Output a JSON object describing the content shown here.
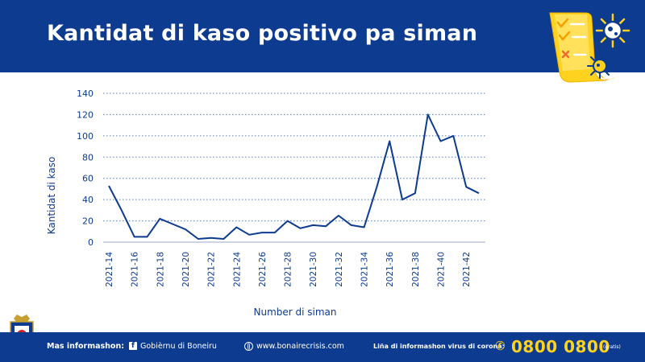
{
  "header": {
    "title": "Kantidat di kaso positivo pa siman"
  },
  "chart_data": {
    "type": "line",
    "title": "",
    "xlabel": "Number di siman",
    "ylabel": "Kantidat di kaso",
    "ylim": [
      0,
      140
    ],
    "yticks": [
      0,
      20,
      40,
      60,
      80,
      100,
      120,
      140
    ],
    "grid": "horizontal-dotted",
    "line_color": "#0d3b8f",
    "x": [
      "2021-14",
      "2021-15",
      "2021-16",
      "2021-17",
      "2021-18",
      "2021-19",
      "2021-20",
      "2021-21",
      "2021-22",
      "2021-23",
      "2021-24",
      "2021-25",
      "2021-26",
      "2021-27",
      "2021-28",
      "2021-29",
      "2021-30",
      "2021-31",
      "2021-32",
      "2021-33",
      "2021-34",
      "2021-35",
      "2021-36",
      "2021-37",
      "2021-38",
      "2021-39",
      "2021-40",
      "2021-41",
      "2021-42",
      "2021-43"
    ],
    "xtick_labels": [
      "2021-14",
      "2021-16",
      "2021-18",
      "2021-20",
      "2021-22",
      "2021-24",
      "2021-26",
      "2021-28",
      "2021-30",
      "2021-32",
      "2021-34",
      "2021-36",
      "2021-38",
      "2021-40",
      "2021-42"
    ],
    "series": [
      {
        "values": [
          53,
          30,
          5,
          5,
          22,
          17,
          12,
          3,
          4,
          3,
          14,
          7,
          9,
          9,
          20,
          13,
          16,
          15,
          25,
          16,
          14,
          52,
          95,
          40,
          46,
          120,
          95,
          100,
          52,
          46
        ]
      }
    ]
  },
  "footer": {
    "label": "Mas informashon:",
    "facebook_icon": "f",
    "facebook": "Gobièrnu di Boneiru",
    "website": "www.bonairecrisis.com",
    "hotline_label": "Liña di informashon virus di corona:",
    "phone": "0800 0800",
    "gratis": "(gratis)"
  },
  "colors": {
    "brand_blue": "#0d3b8f",
    "accent_yellow": "#ffd21f"
  }
}
